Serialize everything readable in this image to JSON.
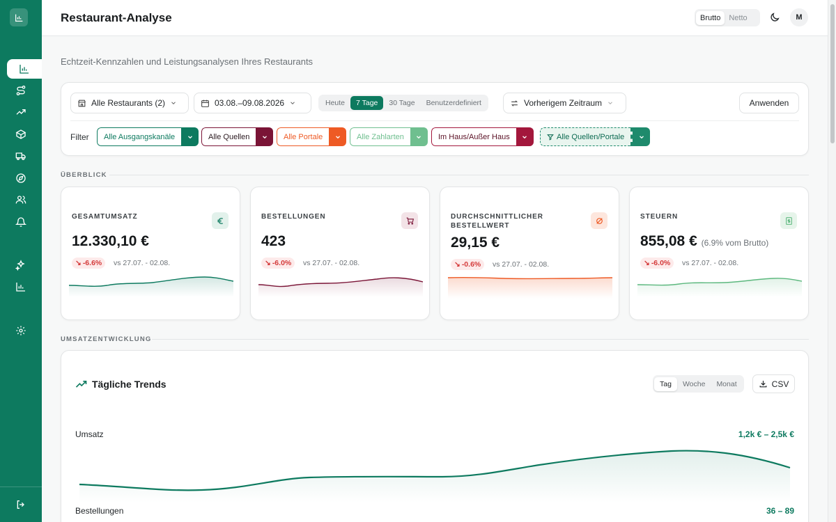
{
  "app": {
    "title": "Restaurant-Analyse",
    "subtitle": "Echtzeit-Kennzahlen und Leistungsanalysen Ihres Restaurants",
    "tax_toggle": [
      {
        "label": "Brutto",
        "active": true
      },
      {
        "label": "Netto",
        "active": false
      }
    ],
    "user_initial": "M",
    "accent": "#0d7a5f"
  },
  "sidebar": {
    "items": [
      {
        "icon": "bar-chart-icon",
        "active": true
      },
      {
        "icon": "route-icon",
        "active": false
      },
      {
        "icon": "trending-up-icon",
        "active": false
      },
      {
        "icon": "box-icon",
        "active": false
      },
      {
        "icon": "truck-icon",
        "active": false
      },
      {
        "icon": "compass-icon",
        "active": false
      },
      {
        "icon": "users-icon",
        "active": false
      },
      {
        "icon": "bell-icon",
        "active": false
      },
      {
        "icon": "sparkles-icon",
        "active": false
      },
      {
        "icon": "bar-chart-icon",
        "active": false
      },
      {
        "icon": "settings-icon",
        "active": false
      },
      {
        "icon": "logout-icon",
        "active": false
      }
    ]
  },
  "filters": {
    "restaurant": "Alle Restaurants (2)",
    "date_range": "03.08.–09.08.2026",
    "ranges": [
      {
        "label": "Heute",
        "active": false
      },
      {
        "label": "7 Tage",
        "active": true
      },
      {
        "label": "30 Tage",
        "active": false
      },
      {
        "label": "Benutzerdefiniert",
        "active": false
      }
    ],
    "compare": "Vorherigem Zeitraum",
    "apply_label": "Anwenden",
    "filter_label": "Filter",
    "chips": [
      {
        "label": "Alle Ausgangskanäle",
        "color": "#0d7a5f"
      },
      {
        "label": "Alle Quellen",
        "color": "#7a1436"
      },
      {
        "label": "Alle Portale",
        "color": "#ee5a24"
      },
      {
        "label": "Alle Zahlarten",
        "color": "#6fbf8f"
      },
      {
        "label": "Im Haus/Außer Haus",
        "color": "#a3173c"
      },
      {
        "label": "Alle Quellen/Portale",
        "color": "#1e8a6c"
      }
    ]
  },
  "overview": {
    "section_label": "ÜBERBLICK",
    "kpis": [
      {
        "label": "GESAMTUMSATZ",
        "value": "12.330,10 €",
        "note": "",
        "change": "-6.6%",
        "compare": "vs 27.07. - 02.08.",
        "icon": "euro-icon",
        "color": "#0d7a5f"
      },
      {
        "label": "BESTELLUNGEN",
        "value": "423",
        "note": "",
        "change": "-6.0%",
        "compare": "vs 27.07. - 02.08.",
        "icon": "cart-icon",
        "color": "#7a1436"
      },
      {
        "label": "DURCHSCHNITTLICHER BESTELLWERT",
        "value": "29,15 €",
        "note": "",
        "change": "-0.6%",
        "compare": "vs 27.07. - 02.08.",
        "icon": "diameter-icon",
        "color": "#ee5a24"
      },
      {
        "label": "STEUERN",
        "value": "855,08 €",
        "note": "(6.9% vom Brutto)",
        "change": "-6.0%",
        "compare": "vs 27.07. - 02.08.",
        "icon": "receipt-icon",
        "color": "#5cb87e"
      }
    ]
  },
  "revenue": {
    "section_label": "UMSATZENTWICKLUNG",
    "title": "Tägliche Trends",
    "granularity": [
      {
        "label": "Tag",
        "active": true
      },
      {
        "label": "Woche",
        "active": false
      },
      {
        "label": "Monat",
        "active": false
      }
    ],
    "csv_label": "CSV",
    "metrics": [
      {
        "label": "Umsatz",
        "range": "1,2k € – 2,5k €"
      },
      {
        "label": "Bestellungen",
        "range": "36 – 89"
      }
    ]
  }
}
